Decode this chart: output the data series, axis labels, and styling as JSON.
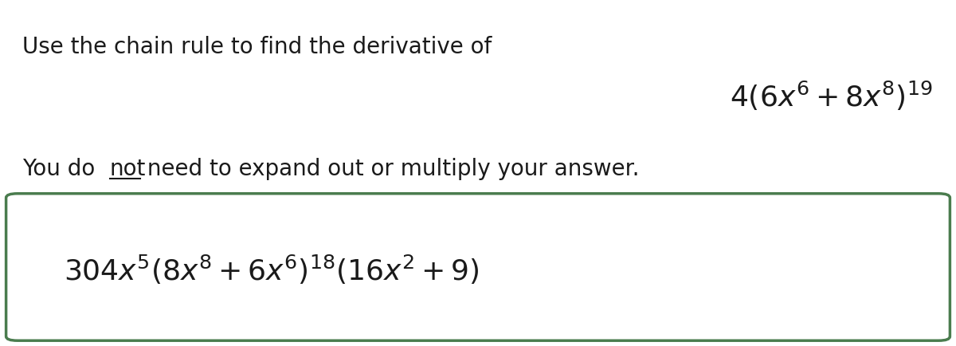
{
  "background_color": "#ffffff",
  "instruction_text": "Use the chain rule to find the derivative of",
  "function_latex": "$4\\left(6x^6 + 8x^8\\right)^{19}$",
  "note_before_underline": "You do ",
  "note_underlined": "not",
  "note_after_underline": " need to expand out or multiply your answer.",
  "answer_latex": "$304x^5\\left(8x^8 + 6x^6\\right)^{18}\\left(16x^2 + 9\\right)$",
  "box_edge_color": "#4a7c4e",
  "text_color": "#1a1a1a",
  "instruction_fontsize": 20,
  "function_fontsize": 26,
  "note_fontsize": 20,
  "answer_fontsize": 26,
  "fig_width": 12.0,
  "fig_height": 4.34,
  "dpi": 100
}
